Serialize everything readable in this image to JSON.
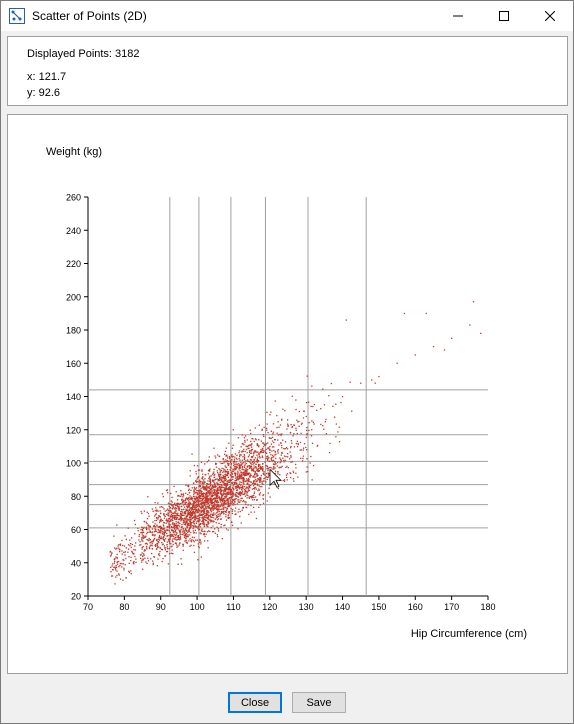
{
  "window": {
    "title": "Scatter of Points (2D)"
  },
  "info": {
    "displayed_points_label": "Displayed Points: 3182",
    "x_readout": "x: 121.7",
    "y_readout": "y: 92.6"
  },
  "buttons": {
    "close_label": "Close",
    "save_label": "Save"
  },
  "colors": {
    "point": "#c0392b",
    "grid": "#a0a0a0",
    "accent": "#0078d7"
  },
  "chart_data": {
    "type": "scatter",
    "xlabel": "Hip Circumference (cm)",
    "ylabel": "Weight (kg)",
    "xlim": [
      70,
      180
    ],
    "ylim": [
      20,
      260
    ],
    "x_ticks": [
      70,
      80,
      90,
      100,
      110,
      120,
      130,
      140,
      150,
      160,
      170,
      180
    ],
    "y_ticks": [
      20,
      40,
      60,
      80,
      100,
      120,
      140,
      160,
      180,
      200,
      220,
      240,
      260
    ],
    "vertical_lines_x": [
      92.5,
      100.5,
      109.3,
      118.8,
      130.5,
      146.5
    ],
    "horizontal_lines_y": [
      61,
      75,
      87,
      101,
      117,
      144
    ],
    "displayed_points": 3182,
    "trend": {
      "x_mean": 104,
      "x_sd": 10.5,
      "slope": 1.45,
      "intercept": -72,
      "noise_sd": 11
    },
    "sample_points": [
      [
        78,
        45
      ],
      [
        80,
        50
      ],
      [
        82,
        55
      ],
      [
        85,
        58
      ],
      [
        88,
        62
      ],
      [
        90,
        65
      ],
      [
        92,
        70
      ],
      [
        95,
        72
      ],
      [
        98,
        78
      ],
      [
        100,
        82
      ],
      [
        102,
        85
      ],
      [
        105,
        90
      ],
      [
        108,
        95
      ],
      [
        110,
        100
      ],
      [
        112,
        105
      ],
      [
        115,
        108
      ],
      [
        118,
        112
      ],
      [
        120,
        115
      ],
      [
        122,
        118
      ],
      [
        125,
        122
      ],
      [
        128,
        125
      ],
      [
        130,
        128
      ],
      [
        135,
        135
      ],
      [
        140,
        140
      ],
      [
        145,
        148
      ],
      [
        150,
        152
      ],
      [
        155,
        160
      ],
      [
        160,
        165
      ],
      [
        165,
        170
      ],
      [
        170,
        175
      ],
      [
        175,
        183
      ],
      [
        178,
        178
      ],
      [
        176,
        197
      ],
      [
        163,
        190
      ],
      [
        157,
        190
      ],
      [
        168,
        168
      ],
      [
        141,
        186
      ],
      [
        148,
        150
      ],
      [
        120,
        92.6
      ]
    ]
  }
}
